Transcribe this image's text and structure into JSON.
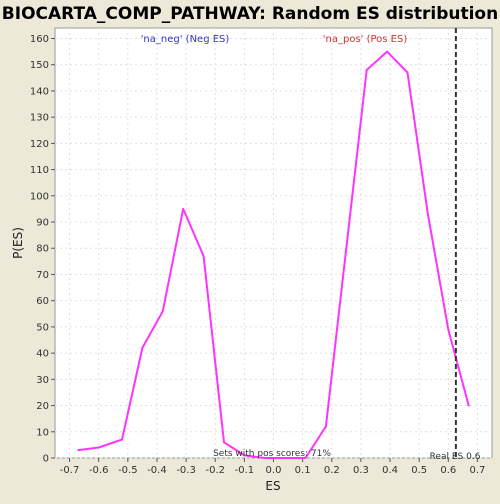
{
  "chart_data": {
    "type": "line",
    "title": "BIOCARTA_COMP_PATHWAY: Random ES distribution",
    "xlabel": "ES",
    "ylabel": "P(ES)",
    "xlim": [
      -0.75,
      0.75
    ],
    "ylim": [
      0,
      164
    ],
    "x_ticks": [
      -0.7,
      -0.6,
      -0.5,
      -0.4,
      -0.3,
      -0.2,
      -0.1,
      0.0,
      0.1,
      0.2,
      0.3,
      0.4,
      0.5,
      0.6,
      0.7
    ],
    "y_ticks": [
      0,
      10,
      20,
      30,
      40,
      50,
      60,
      70,
      80,
      90,
      100,
      110,
      120,
      130,
      140,
      150,
      160
    ],
    "grid": true,
    "series": [
      {
        "color": "#ff33ff",
        "x": [
          -0.67,
          -0.6,
          -0.52,
          -0.45,
          -0.38,
          -0.31,
          -0.24,
          -0.17,
          -0.1,
          -0.03,
          0.04,
          0.11,
          0.18,
          0.25,
          0.32,
          0.39,
          0.46,
          0.53,
          0.6,
          0.67
        ],
        "y": [
          3,
          4,
          7,
          42,
          56,
          95,
          77,
          6,
          1,
          0,
          0,
          0,
          12,
          80,
          148,
          155,
          147,
          93,
          49,
          20
        ]
      }
    ],
    "reference_line": {
      "x": 0.626,
      "style": "dashed",
      "color": "#333333"
    },
    "annotations": [
      {
        "id": "neg",
        "text": "'na_neg' (Neg ES)",
        "color": "#3333cc"
      },
      {
        "id": "pos",
        "text": "'na_pos' (Pos ES)",
        "color": "#cc3333"
      },
      {
        "id": "sets",
        "text": "Sets with pos scores: 71%",
        "color": "#333333"
      },
      {
        "id": "real",
        "text": "Real ES 0.6",
        "color": "#333333"
      }
    ]
  }
}
